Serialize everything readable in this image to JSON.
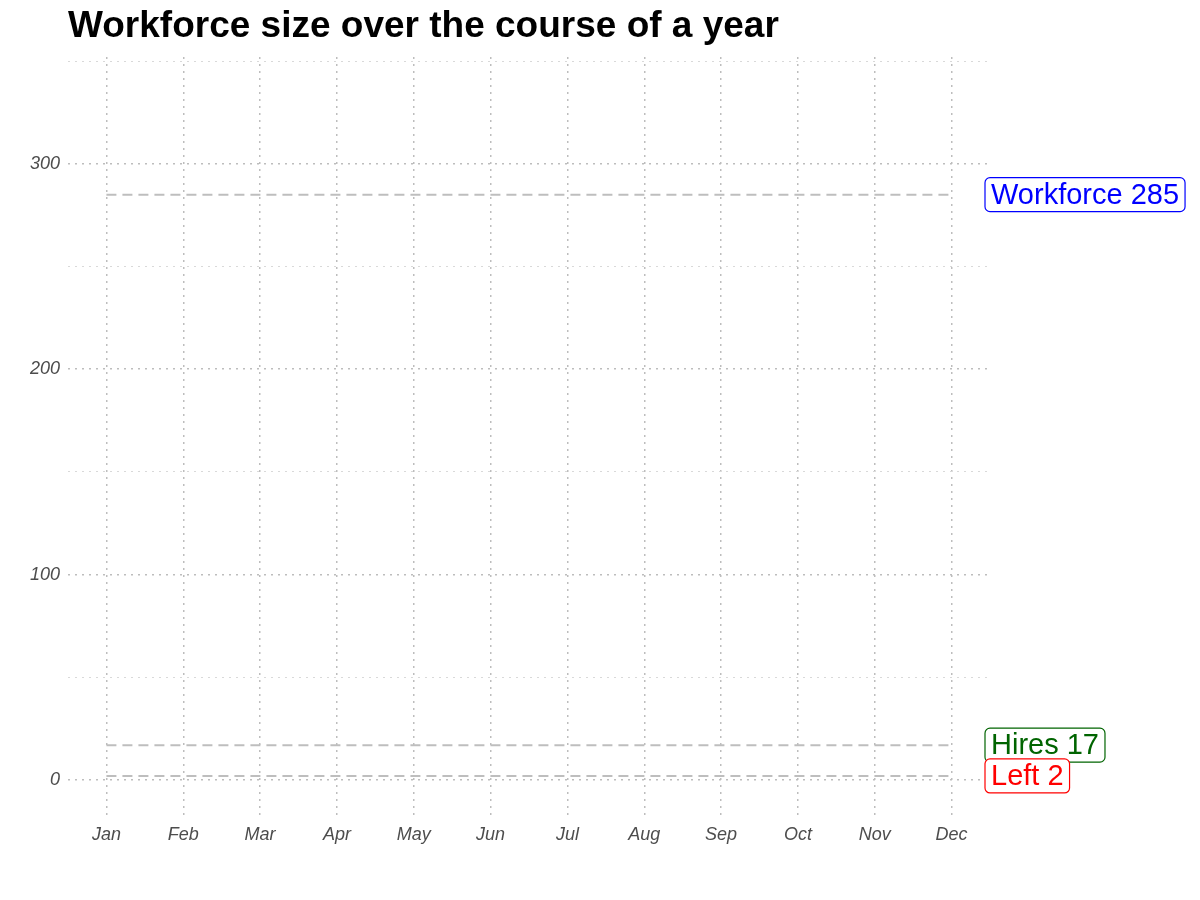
{
  "chart_data": {
    "type": "line",
    "title": "Workforce size over the course of a year",
    "categories": [
      "Jan",
      "Feb",
      "Mar",
      "Apr",
      "May",
      "Jun",
      "Jul",
      "Aug",
      "Sep",
      "Oct",
      "Nov",
      "Dec"
    ],
    "series": [
      {
        "name": "Workforce 285",
        "color": "#bebebe",
        "values": [
          285,
          285,
          285,
          285,
          285,
          285,
          285,
          285,
          285,
          285,
          285,
          285
        ]
      },
      {
        "name": "Hires 17",
        "color": "#bebebe",
        "values": [
          17,
          17,
          17,
          17,
          17,
          17,
          17,
          17,
          17,
          17,
          17,
          17
        ]
      },
      {
        "name": "Left 2",
        "color": "#bebebe",
        "values": [
          2,
          2,
          2,
          2,
          2,
          2,
          2,
          2,
          2,
          2,
          2,
          2
        ]
      }
    ],
    "ylim": [
      -17,
      352
    ],
    "yticks": [
      0,
      {
        "value": 50,
        "label": null
      },
      100,
      {
        "value": 150,
        "label": null
      },
      200,
      {
        "value": 250,
        "label": null
      },
      300,
      {
        "value": 350,
        "label": null
      }
    ],
    "grid": true,
    "marker": "none",
    "line_style": "dashed"
  }
}
